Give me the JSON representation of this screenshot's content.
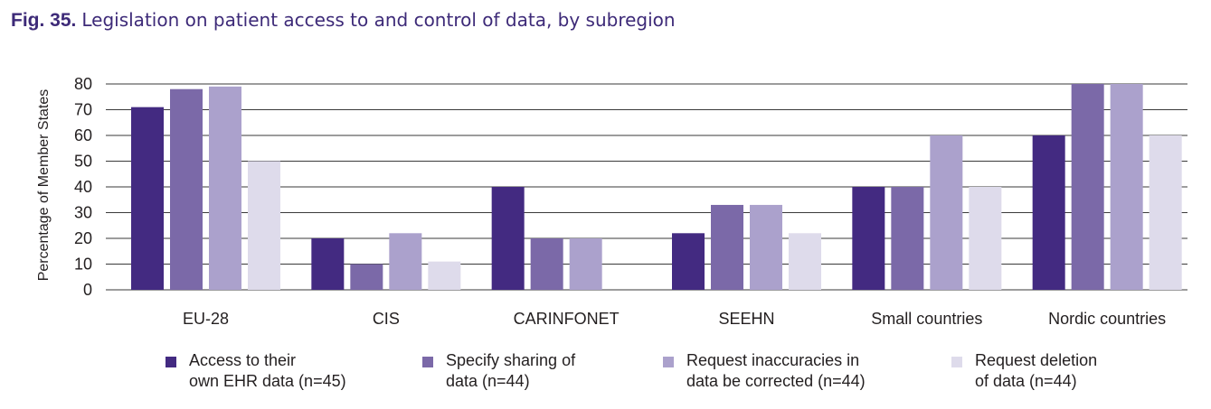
{
  "figure": {
    "number": "Fig. 35.",
    "title": "Legislation on patient access to and control of data, by subregion"
  },
  "colors": [
    "#432a81",
    "#7b69a8",
    "#aba1cc",
    "#dedbeb"
  ],
  "chart_data": {
    "type": "bar",
    "ylabel": "Percentage of Member States",
    "xlabel": "",
    "ylim": [
      0,
      80
    ],
    "yticks": [
      0,
      10,
      20,
      30,
      40,
      50,
      60,
      70,
      80
    ],
    "grid": true,
    "legend_position": "bottom",
    "categories": [
      "EU-28",
      "CIS",
      "CARINFONET",
      "SEEHN",
      "Small countries",
      "Nordic countries"
    ],
    "series": [
      {
        "name": "Access to their own EHR data (n=45)",
        "label_lines": [
          "Access to their",
          "own EHR data (n=45)"
        ],
        "values": [
          71,
          20,
          40,
          22,
          40,
          60
        ]
      },
      {
        "name": "Specify sharing of data (n=44)",
        "label_lines": [
          "Specify sharing of",
          "data (n=44)"
        ],
        "values": [
          78,
          10,
          20,
          33,
          40,
          80
        ]
      },
      {
        "name": "Request inaccuracies in data be corrected (n=44)",
        "label_lines": [
          "Request inaccuracies in",
          "data be corrected (n=44)"
        ],
        "values": [
          79,
          22,
          20,
          33,
          60,
          80
        ]
      },
      {
        "name": "Request deletion of data (n=44)",
        "label_lines": [
          "Request deletion",
          "of data (n=44)"
        ],
        "values": [
          50,
          11,
          0,
          22,
          40,
          60
        ]
      }
    ]
  }
}
